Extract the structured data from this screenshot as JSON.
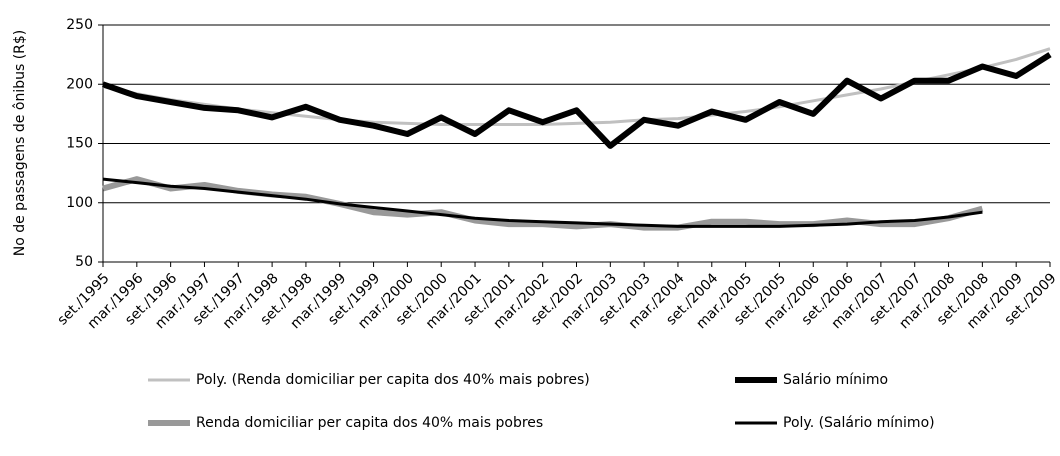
{
  "chart_data": {
    "type": "line",
    "y_label": "No de passagens de ônibus (R$)",
    "categories": [
      "set./1995",
      "mar./1996",
      "set./1996",
      "mar./1997",
      "set./1997",
      "mar./1998",
      "set./1998",
      "mar./1999",
      "set./1999",
      "mar./2000",
      "set./2000",
      "mar./2001",
      "set./2001",
      "mar./2002",
      "set./2002",
      "mar./2003",
      "set./2003",
      "mar./2004",
      "set./2004",
      "mar./2005",
      "set./2005",
      "mar./2006",
      "set./2006",
      "mar./2007",
      "set./2007",
      "mar./2008",
      "set./2008",
      "mar./2009",
      "set./2009"
    ],
    "series": [
      {
        "name": "Poly. (Renda domiciliar per capita dos 40% mais pobres)",
        "color": "#c0c0c0",
        "width": 3,
        "values": [
          198,
          192,
          187,
          183,
          179,
          176,
          173,
          170,
          168,
          167,
          166,
          166,
          166,
          166,
          167,
          168,
          170,
          171,
          174,
          177,
          181,
          186,
          191,
          196,
          202,
          208,
          214,
          221,
          230
        ]
      },
      {
        "name": "Salário mínimo",
        "color": "#000000",
        "width": 6,
        "values": [
          200,
          190,
          185,
          180,
          178,
          172,
          181,
          170,
          165,
          158,
          172,
          158,
          178,
          168,
          178,
          148,
          170,
          165,
          177,
          170,
          185,
          175,
          203,
          188,
          203,
          203,
          215,
          207,
          225
        ]
      },
      {
        "name": "Renda domiciliar per capita dos 40% mais pobres",
        "color": "#999999",
        "width": 6,
        "values": [
          112,
          120,
          112,
          115,
          110,
          107,
          105,
          99,
          92,
          90,
          92,
          85,
          82,
          82,
          80,
          82,
          79,
          79,
          84,
          84,
          82,
          82,
          85,
          82,
          82,
          87,
          95,
          null,
          null
        ]
      },
      {
        "name": "Poly. (Salário mínimo)",
        "color": "#000000",
        "width": 3,
        "values": [
          120,
          117,
          114,
          112,
          109,
          106,
          103,
          99,
          96,
          93,
          90,
          87,
          85,
          84,
          83,
          82,
          81,
          80,
          80,
          80,
          80,
          81,
          82,
          84,
          85,
          88,
          92,
          null,
          null
        ]
      }
    ],
    "ylim": [
      50,
      250
    ],
    "yticks": [
      50,
      100,
      150,
      200,
      250
    ],
    "grid": true
  }
}
